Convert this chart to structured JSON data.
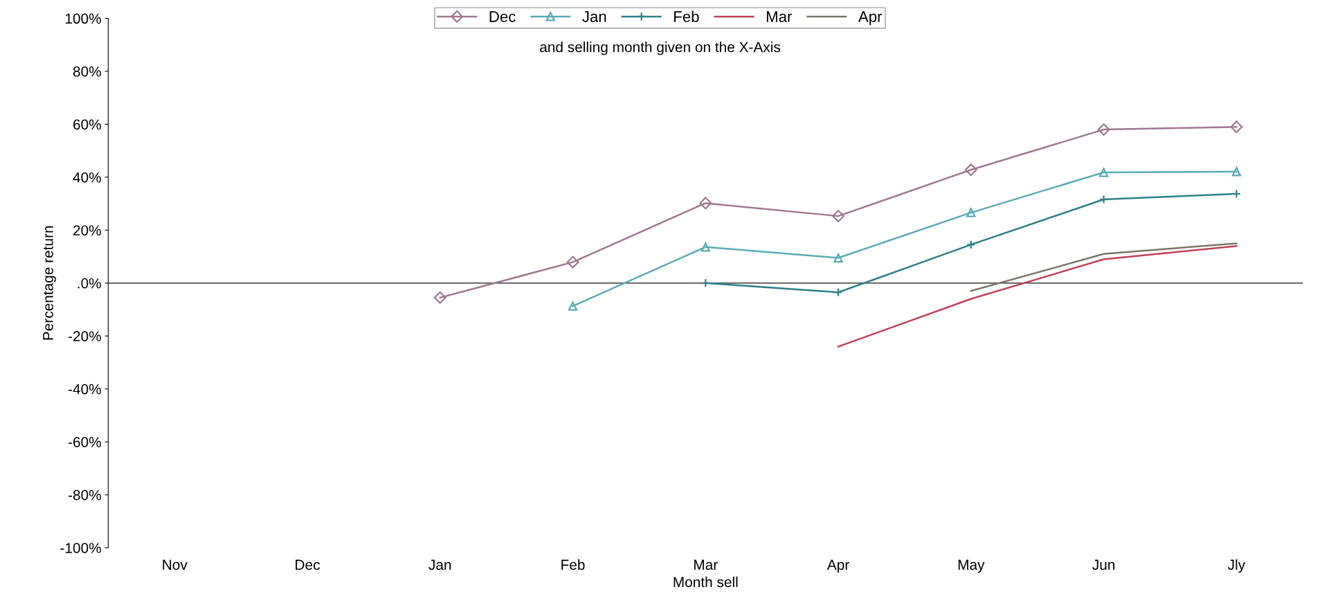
{
  "chart_data": {
    "type": "line",
    "title": "and selling month given on the X-Axis",
    "xlabel": "Month sell",
    "ylabel": "Percentage return",
    "categories": [
      "Nov",
      "Dec",
      "Jan",
      "Feb",
      "Mar",
      "Apr",
      "May",
      "Jun",
      "Jly"
    ],
    "series": [
      {
        "name": "Dec",
        "color": "#a07890",
        "marker": "diamond",
        "values": [
          null,
          null,
          -5.5,
          7.9,
          30.2,
          25.3,
          42.8,
          58,
          59
        ]
      },
      {
        "name": "Jan",
        "color": "#5aabb8",
        "marker": "triangle",
        "values": [
          null,
          null,
          null,
          -8.7,
          13.6,
          9.5,
          26.6,
          41.8,
          42.1
        ]
      },
      {
        "name": "Feb",
        "color": "#2f7f8a",
        "marker": "cross",
        "values": [
          null,
          null,
          null,
          null,
          0,
          -3.5,
          14.5,
          31.6,
          33.7
        ]
      },
      {
        "name": "Mar",
        "color": "#c0405a",
        "marker": "none",
        "values": [
          null,
          null,
          null,
          null,
          null,
          -24,
          -6,
          9,
          14
        ]
      },
      {
        "name": "Apr",
        "color": "#7a7668",
        "marker": "none",
        "values": [
          null,
          null,
          null,
          null,
          null,
          null,
          -3,
          11,
          15
        ]
      }
    ],
    "ylim": [
      -100,
      100
    ],
    "yticks": [
      {
        "value": -100,
        "label": "-100%"
      },
      {
        "value": -80,
        "label": "-80%"
      },
      {
        "value": -60,
        "label": "-60%"
      },
      {
        "value": -40,
        "label": "-40%"
      },
      {
        "value": -20,
        "label": "-20%"
      },
      {
        "value": 0,
        "label": ".0%"
      },
      {
        "value": 20,
        "label": "20%"
      },
      {
        "value": 40,
        "label": "40%"
      },
      {
        "value": 60,
        "label": "60%"
      },
      {
        "value": 80,
        "label": "80%"
      },
      {
        "value": 100,
        "label": "100%"
      }
    ],
    "ref_lines": [
      {
        "axis": "y",
        "value": 0,
        "color": "#555555"
      }
    ],
    "legend": "top",
    "grid": false,
    "line_style": "solid"
  }
}
